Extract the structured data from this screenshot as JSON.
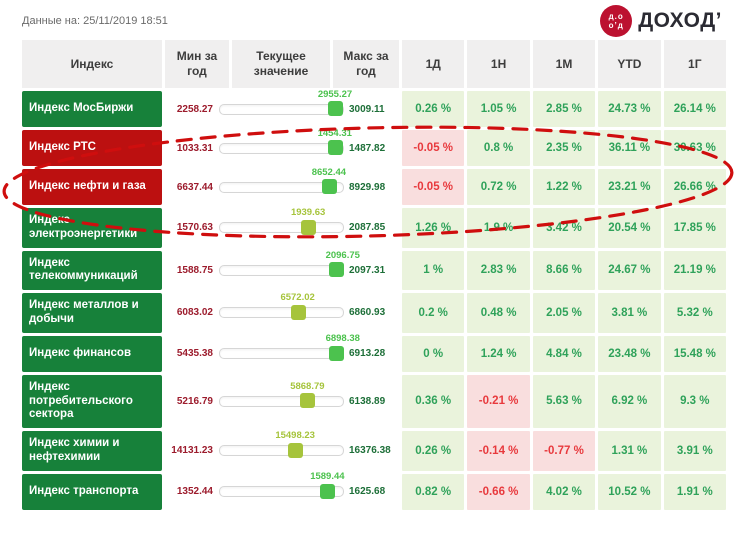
{
  "meta": {
    "timestamp_label": "Данные на: 25/11/2019 18:51"
  },
  "logo": {
    "brand": "ДОХОД’",
    "mark_line1": "д.о",
    "mark_line2": "о’д"
  },
  "colors": {
    "green_row": "#17813a",
    "red_row": "#bc1010",
    "pos_bg": "#eaf3dc",
    "pos_text": "#2fa25a",
    "neg_bg": "#f9dede",
    "neg_text": "#e8393d",
    "handle_green": "#4cc24e",
    "handle_yellow": "#a6c43c",
    "min_text": "#9c1b2c",
    "max_text": "#1d6f38",
    "logo_red": "#bc1130",
    "annotation": "#cf0e0e"
  },
  "table": {
    "headers": {
      "index": "Индекс",
      "min": "Мин за год",
      "current": "Текущее значение",
      "max": "Макс за год",
      "periods": [
        "1Д",
        "1Н",
        "1М",
        "YTD",
        "1Г"
      ]
    },
    "rows": [
      {
        "name": "Индекс МосБиржи",
        "color": "green",
        "min": "2258.27",
        "current": "2955.27",
        "max": "3009.11",
        "pct": 92.8,
        "handle": "green",
        "changes": [
          {
            "value": "0.26 %",
            "negative": false
          },
          {
            "value": "1.05 %",
            "negative": false
          },
          {
            "value": "2.85 %",
            "negative": false
          },
          {
            "value": "24.73 %",
            "negative": false
          },
          {
            "value": "26.14 %",
            "negative": false
          }
        ]
      },
      {
        "name": "Индекс РТС",
        "color": "red",
        "min": "1033.31",
        "current": "1454.31",
        "max": "1487.82",
        "pct": 92.6,
        "handle": "green",
        "changes": [
          {
            "value": "-0.05 %",
            "negative": true
          },
          {
            "value": "0.8 %",
            "negative": false
          },
          {
            "value": "2.35 %",
            "negative": false
          },
          {
            "value": "36.11 %",
            "negative": false
          },
          {
            "value": "30.63 %",
            "negative": false
          }
        ]
      },
      {
        "name": "Индекс нефти и газа",
        "color": "red",
        "min": "6637.44",
        "current": "8652.44",
        "max": "8929.98",
        "pct": 87.9,
        "handle": "green",
        "changes": [
          {
            "value": "-0.05 %",
            "negative": true
          },
          {
            "value": "0.72 %",
            "negative": false
          },
          {
            "value": "1.22 %",
            "negative": false
          },
          {
            "value": "23.21 %",
            "negative": false
          },
          {
            "value": "26.66 %",
            "negative": false
          }
        ]
      },
      {
        "name": "Индекс электроэнергетики",
        "color": "green",
        "min": "1570.63",
        "current": "1939.63",
        "max": "2087.85",
        "pct": 71.3,
        "handle": "yellow",
        "changes": [
          {
            "value": "1.26 %",
            "negative": false
          },
          {
            "value": "1.9 %",
            "negative": false
          },
          {
            "value": "3.42 %",
            "negative": false
          },
          {
            "value": "20.54 %",
            "negative": false
          },
          {
            "value": "17.85 %",
            "negative": false
          }
        ]
      },
      {
        "name": "Индекс телекоммуникаций",
        "color": "green",
        "min": "1588.75",
        "current": "2096.75",
        "max": "2097.31",
        "pct": 99.0,
        "handle": "green",
        "changes": [
          {
            "value": "1 %",
            "negative": false
          },
          {
            "value": "2.83 %",
            "negative": false
          },
          {
            "value": "8.66 %",
            "negative": false
          },
          {
            "value": "24.67 %",
            "negative": false
          },
          {
            "value": "21.19 %",
            "negative": false
          }
        ]
      },
      {
        "name": "Индекс металлов и добычи",
        "color": "green",
        "min": "6083.02",
        "current": "6572.02",
        "max": "6860.93",
        "pct": 62.9,
        "handle": "yellow",
        "changes": [
          {
            "value": "0.2 %",
            "negative": false
          },
          {
            "value": "0.48 %",
            "negative": false
          },
          {
            "value": "2.05 %",
            "negative": false
          },
          {
            "value": "3.81 %",
            "negative": false
          },
          {
            "value": "5.32 %",
            "negative": false
          }
        ]
      },
      {
        "name": "Индекс финансов",
        "color": "green",
        "min": "5435.38",
        "current": "6898.38",
        "max": "6913.28",
        "pct": 99.0,
        "handle": "green",
        "changes": [
          {
            "value": "0 %",
            "negative": false
          },
          {
            "value": "1.24 %",
            "negative": false
          },
          {
            "value": "4.84 %",
            "negative": false
          },
          {
            "value": "23.48 %",
            "negative": false
          },
          {
            "value": "15.48 %",
            "negative": false
          }
        ]
      },
      {
        "name": "Индекс потребительского сектора",
        "color": "green",
        "min": "5216.79",
        "current": "5868.79",
        "max": "6138.89",
        "pct": 70.7,
        "handle": "yellow",
        "changes": [
          {
            "value": "0.36 %",
            "negative": false
          },
          {
            "value": "-0.21 %",
            "negative": true
          },
          {
            "value": "5.63 %",
            "negative": false
          },
          {
            "value": "6.92 %",
            "negative": false
          },
          {
            "value": "9.3 %",
            "negative": false
          }
        ]
      },
      {
        "name": "Индекс химии и нефтехимии",
        "color": "green",
        "min": "14131.23",
        "current": "15498.23",
        "max": "16376.38",
        "pct": 60.9,
        "handle": "yellow",
        "changes": [
          {
            "value": "0.26 %",
            "negative": false
          },
          {
            "value": "-0.14 %",
            "negative": true
          },
          {
            "value": "-0.77 %",
            "negative": true
          },
          {
            "value": "1.31 %",
            "negative": false
          },
          {
            "value": "3.91 %",
            "negative": false
          }
        ]
      },
      {
        "name": "Индекс транспорта",
        "color": "green",
        "min": "1352.44",
        "current": "1589.44",
        "max": "1625.68",
        "pct": 86.7,
        "handle": "green",
        "changes": [
          {
            "value": "0.82 %",
            "negative": false
          },
          {
            "value": "-0.66 %",
            "negative": true
          },
          {
            "value": "4.02 %",
            "negative": false
          },
          {
            "value": "10.52 %",
            "negative": false
          },
          {
            "value": "1.91 %",
            "negative": false
          }
        ]
      }
    ]
  },
  "annotation": {
    "shape": "dashed-ellipse",
    "color": "#cf0e0e"
  }
}
